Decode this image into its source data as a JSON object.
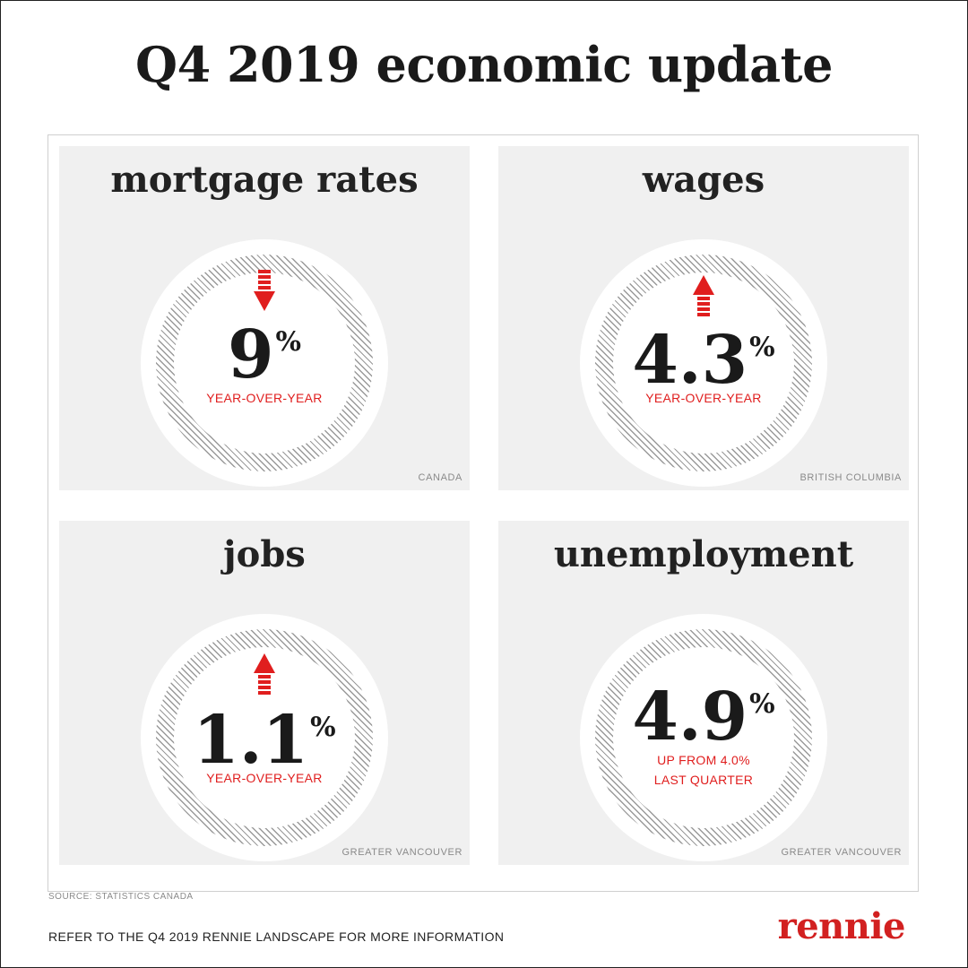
{
  "title": "Q4 2019 economic update",
  "panels": [
    {
      "title": "mortgage rates",
      "value": "9",
      "unit": "%",
      "caption_lines": [
        "YEAR-OVER-YEAR"
      ],
      "region": "CANADA",
      "direction": "down",
      "icon": "arrow-down-icon"
    },
    {
      "title": "wages",
      "value": "4.3",
      "unit": "%",
      "caption_lines": [
        "YEAR-OVER-YEAR"
      ],
      "region": "BRITISH COLUMBIA",
      "direction": "up",
      "icon": "arrow-up-icon"
    },
    {
      "title": "jobs",
      "value": "1.1",
      "unit": "%",
      "caption_lines": [
        "YEAR-OVER-YEAR"
      ],
      "region": "GREATER VANCOUVER",
      "direction": "up",
      "icon": "arrow-up-icon"
    },
    {
      "title": "unemployment",
      "value": "4.9",
      "unit": "%",
      "caption_lines": [
        "UP FROM 4.0%",
        "LAST QUARTER"
      ],
      "region": "GREATER VANCOUVER",
      "direction": "none",
      "icon": ""
    }
  ],
  "source": "SOURCE: STATISTICS CANADA",
  "footer_note": "REFER TO THE Q4 2019 RENNIE LANDSCAPE FOR MORE INFORMATION",
  "brand": "rennie",
  "colors": {
    "accent": "#e01e1e",
    "panel_bg": "#f0f0f0",
    "text": "#1a1a1a",
    "muted": "#8a8a8a"
  }
}
